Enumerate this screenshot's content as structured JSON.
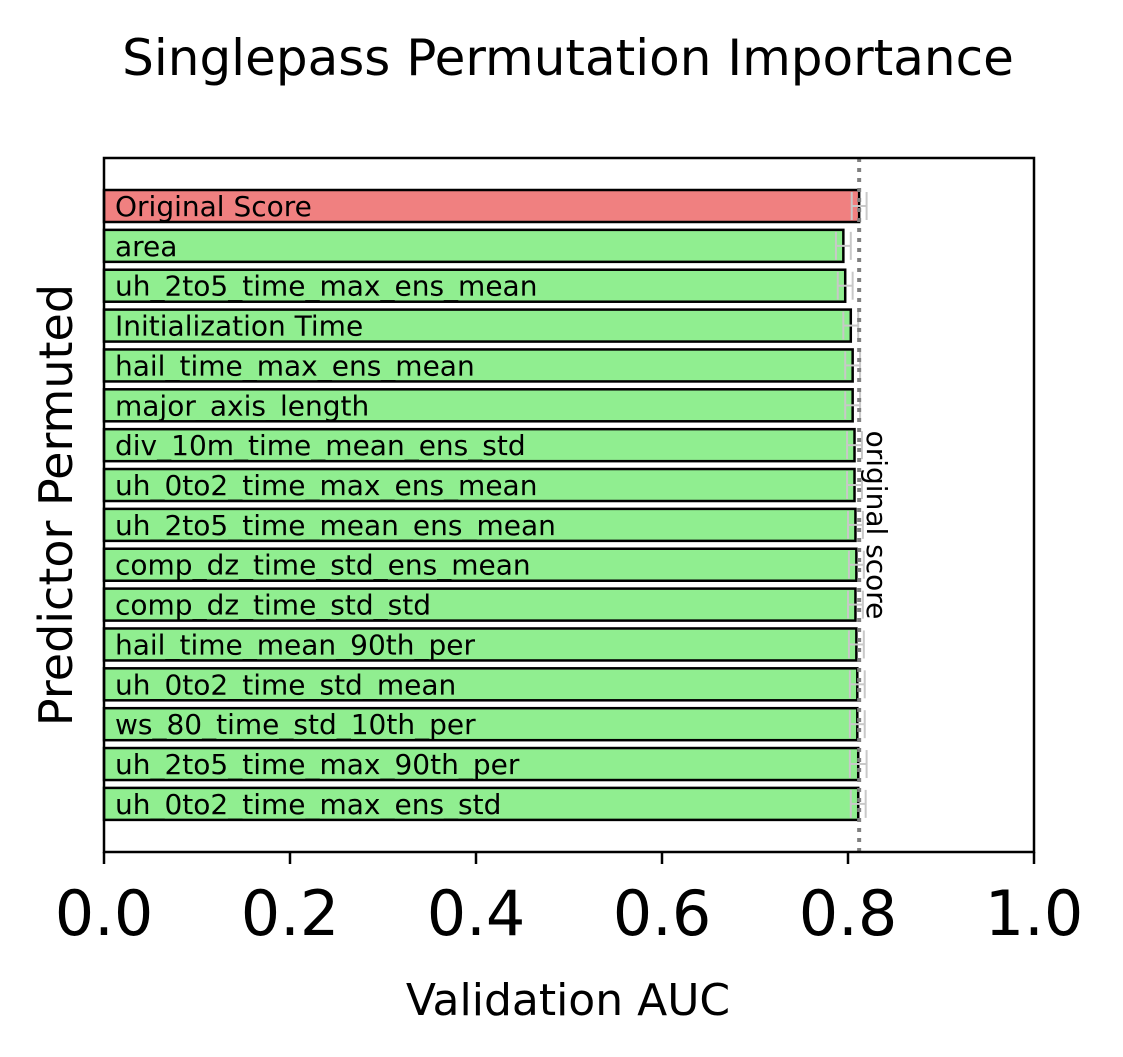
{
  "chart_data": {
    "type": "bar",
    "orientation": "horizontal",
    "title": "Singlepass Permutation Importance",
    "xlabel": "Validation AUC",
    "ylabel": "Predictor Permuted",
    "xlim": [
      0.0,
      1.0
    ],
    "xticks": [
      "0.0",
      "0.2",
      "0.4",
      "0.6",
      "0.8",
      "1.0"
    ],
    "grid": false,
    "reference_line": {
      "value": 0.812,
      "label": "original score"
    },
    "colors": {
      "original": "#f08080",
      "permuted": "#90ee90",
      "edge": "#000000",
      "error": "#c8c8c8",
      "reference": "#808080"
    },
    "categories": [
      "Original Score",
      "area",
      "uh_2to5_time_max_ens_mean",
      "Initialization Time",
      "hail_time_max_ens_mean",
      "major_axis_length",
      "div_10m_time_mean_ens_std",
      "uh_0to2_time_max_ens_mean",
      "uh_2to5_time_mean_ens_mean",
      "comp_dz_time_std_ens_mean",
      "comp_dz_time_std_std",
      "hail_time_mean_90th_per",
      "uh_0to2_time_std_mean",
      "ws_80_time_std_10th_per",
      "uh_2to5_time_max_90th_per",
      "uh_0to2_time_max_ens_std"
    ],
    "values": [
      0.812,
      0.795,
      0.797,
      0.803,
      0.805,
      0.805,
      0.807,
      0.807,
      0.808,
      0.809,
      0.808,
      0.809,
      0.81,
      0.81,
      0.811,
      0.811
    ],
    "error_low": [
      0.804,
      0.787,
      0.789,
      0.795,
      0.797,
      0.797,
      0.799,
      0.799,
      0.8,
      0.801,
      0.8,
      0.801,
      0.802,
      0.802,
      0.802,
      0.803
    ],
    "error_high": [
      0.82,
      0.803,
      0.805,
      0.811,
      0.813,
      0.813,
      0.815,
      0.815,
      0.816,
      0.817,
      0.816,
      0.817,
      0.818,
      0.818,
      0.82,
      0.819
    ]
  }
}
